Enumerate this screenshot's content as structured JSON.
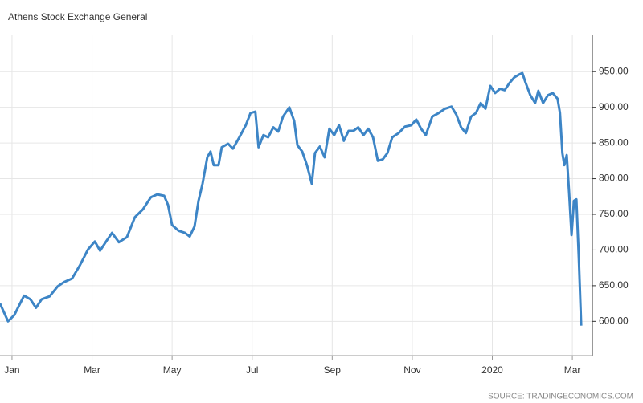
{
  "chart_data": {
    "type": "line",
    "title": "Athens Stock Exchange General",
    "source": "SOURCE: TRADINGECONOMICS.COM",
    "x": [
      -0.3,
      -0.1,
      0.06,
      0.3,
      0.46,
      0.6,
      0.74,
      0.94,
      1.14,
      1.3,
      1.5,
      1.7,
      1.9,
      2.07,
      2.2,
      2.35,
      2.5,
      2.67,
      2.87,
      3.07,
      3.27,
      3.47,
      3.63,
      3.8,
      3.9,
      4.0,
      4.16,
      4.32,
      4.44,
      4.56,
      4.66,
      4.76,
      4.88,
      4.96,
      5.04,
      5.16,
      5.24,
      5.4,
      5.52,
      5.68,
      5.84,
      5.96,
      6.08,
      6.16,
      6.28,
      6.4,
      6.53,
      6.65,
      6.77,
      6.93,
      7.05,
      7.13,
      7.25,
      7.37,
      7.49,
      7.57,
      7.69,
      7.81,
      7.93,
      8.05,
      8.17,
      8.29,
      8.41,
      8.53,
      8.65,
      8.78,
      8.9,
      9.02,
      9.14,
      9.26,
      9.38,
      9.5,
      9.66,
      9.82,
      9.98,
      10.1,
      10.22,
      10.34,
      10.5,
      10.66,
      10.82,
      10.98,
      11.1,
      11.22,
      11.34,
      11.47,
      11.59,
      11.71,
      11.83,
      11.95,
      12.07,
      12.19,
      12.31,
      12.43,
      12.55,
      12.67,
      12.75,
      12.83,
      12.95,
      13.07,
      13.15,
      13.27,
      13.39,
      13.51,
      13.63,
      13.69,
      13.75,
      13.8,
      13.86,
      13.92,
      13.98,
      14.04,
      14.1,
      14.16,
      14.22
    ],
    "series": [
      {
        "name": "Athens Stock Exchange General",
        "color": "#3d85c6",
        "values": [
          625,
          600,
          609,
          636,
          631,
          619,
          631,
          635,
          649,
          655,
          660,
          679,
          701,
          712,
          699,
          712,
          724,
          711,
          718,
          746,
          757,
          774,
          778,
          776,
          763,
          735,
          727,
          724,
          719,
          733,
          769,
          793,
          830,
          838,
          819,
          819,
          844,
          849,
          842,
          858,
          875,
          892,
          894,
          844,
          861,
          858,
          872,
          866,
          887,
          900,
          881,
          847,
          838,
          819,
          793,
          836,
          845,
          830,
          870,
          861,
          875,
          853,
          867,
          867,
          872,
          861,
          870,
          858,
          825,
          827,
          836,
          858,
          864,
          873,
          875,
          883,
          870,
          861,
          887,
          892,
          898,
          901,
          890,
          872,
          864,
          887,
          892,
          906,
          898,
          930,
          920,
          926,
          924,
          934,
          942,
          946,
          948,
          935,
          917,
          906,
          923,
          906,
          917,
          920,
          912,
          892,
          836,
          819,
          833,
          780,
          721,
          769,
          771,
          690,
          594
        ]
      }
    ],
    "xlim": [
      -0.3,
      14.5
    ],
    "xticks": [
      {
        "value": 0,
        "label": "Jan"
      },
      {
        "value": 2,
        "label": "Mar"
      },
      {
        "value": 4,
        "label": "May"
      },
      {
        "value": 6,
        "label": "Jul"
      },
      {
        "value": 8,
        "label": "Sep"
      },
      {
        "value": 10,
        "label": "Nov"
      },
      {
        "value": 12,
        "label": "2020"
      },
      {
        "value": 14,
        "label": "Mar"
      }
    ],
    "ylim": [
      552,
      1002
    ],
    "yticks": [
      {
        "value": 600,
        "label": "600.00"
      },
      {
        "value": 650,
        "label": "650.00"
      },
      {
        "value": 700,
        "label": "700.00"
      },
      {
        "value": 750,
        "label": "750.00"
      },
      {
        "value": 800,
        "label": "800.00"
      },
      {
        "value": 850,
        "label": "850.00"
      },
      {
        "value": 900,
        "label": "900.00"
      },
      {
        "value": 950,
        "label": "950.00"
      }
    ],
    "grid": true
  }
}
